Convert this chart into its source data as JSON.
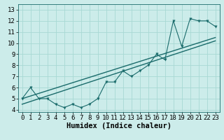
{
  "xlabel": "Humidex (Indice chaleur)",
  "ylabel": "",
  "bg_color": "#ccecea",
  "line_color": "#1a6b6b",
  "grid_color": "#a8d8d4",
  "xlim": [
    -0.5,
    23.5
  ],
  "ylim": [
    3.8,
    13.5
  ],
  "xticks": [
    0,
    1,
    2,
    3,
    4,
    5,
    6,
    7,
    8,
    9,
    10,
    11,
    12,
    13,
    14,
    15,
    16,
    17,
    18,
    19,
    20,
    21,
    22,
    23
  ],
  "yticks": [
    4,
    5,
    6,
    7,
    8,
    9,
    10,
    11,
    12,
    13
  ],
  "data_x": [
    0,
    1,
    2,
    3,
    4,
    5,
    6,
    7,
    8,
    9,
    10,
    11,
    12,
    13,
    14,
    15,
    16,
    17,
    18,
    19,
    20,
    21,
    22,
    23
  ],
  "data_y": [
    5.0,
    6.0,
    5.0,
    5.0,
    4.5,
    4.2,
    4.5,
    4.2,
    4.5,
    5.0,
    6.5,
    6.5,
    7.5,
    7.0,
    7.5,
    8.0,
    9.0,
    8.5,
    12.0,
    9.7,
    12.2,
    12.0,
    12.0,
    11.5
  ],
  "upper_line_x": [
    0,
    23
  ],
  "upper_line_y": [
    5.0,
    10.5
  ],
  "lower_line_x": [
    0,
    23
  ],
  "lower_line_y": [
    4.5,
    10.2
  ],
  "tick_fontsize": 6.5,
  "label_fontsize": 7.5
}
